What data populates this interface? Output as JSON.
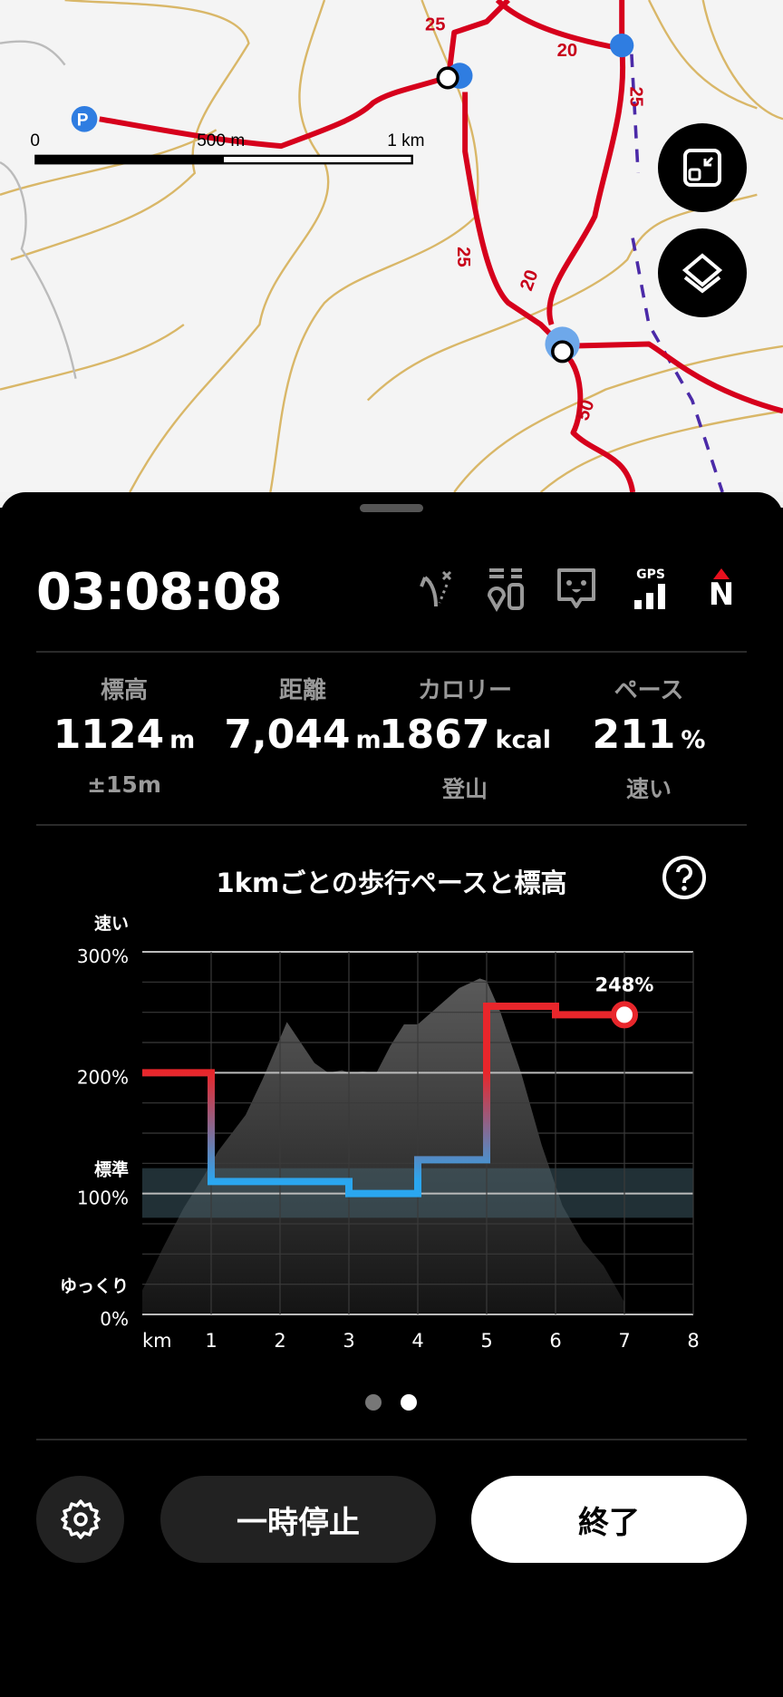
{
  "map": {
    "scale_labels": [
      "0",
      "500 m",
      "1 km"
    ],
    "trail_times": [
      "25",
      "20",
      "25",
      "25",
      "20",
      "50"
    ],
    "buttons": [
      {
        "icon": "fit-route-icon"
      },
      {
        "icon": "layers-icon"
      }
    ],
    "colors": {
      "trail": "#d6001c",
      "contour": "#d9b768",
      "poi": "#2f7de1",
      "boundary": "#4b2aa8"
    }
  },
  "sheet": {
    "timer": "03:08:08",
    "status_icons": [
      "route-off-icon",
      "waypoint-list-icon",
      "face-chat-icon",
      "gps-signal-icon",
      "north-compass-icon"
    ],
    "gps_label": "GPS",
    "north_label": "N",
    "stats": [
      {
        "label": "標高",
        "value": "1124",
        "unit": "m",
        "sub": "±15m"
      },
      {
        "label": "距離",
        "value": "7,044",
        "unit": "m",
        "sub": ""
      },
      {
        "label": "カロリー",
        "value": "1867",
        "unit": "kcal",
        "sub": "登山"
      },
      {
        "label": "ペース",
        "value": "211",
        "unit": "%",
        "sub": "速い"
      }
    ],
    "chart_title": "1kmごとの歩行ペースと標高",
    "pager": {
      "count": 2,
      "active": 2
    },
    "buttons": {
      "pause": "一時停止",
      "end": "終了"
    }
  },
  "chart_data": {
    "type": "line",
    "title": "1kmごとの歩行ペースと標高",
    "xlabel": "km",
    "x_ticks": [
      "1",
      "2",
      "3",
      "4",
      "5",
      "6",
      "7",
      "8"
    ],
    "xlim": [
      0,
      8
    ],
    "ylim": [
      0,
      300
    ],
    "y_ticks": [
      "0%",
      "100%",
      "200%",
      "300%"
    ],
    "y_annotations": {
      "top": "速い",
      "standard": "標準",
      "bottom": "ゆっくり"
    },
    "grid": true,
    "standard_band": [
      80,
      121
    ],
    "pace_series": {
      "segments_km": [
        [
          0,
          1
        ],
        [
          1,
          3
        ],
        [
          3,
          4
        ],
        [
          4,
          5
        ],
        [
          5,
          6
        ],
        [
          6,
          7
        ]
      ],
      "values": [
        200,
        110,
        100,
        128,
        255,
        248
      ],
      "last_label": "248%",
      "colors": {
        "fast": "#e8262b",
        "slow": "#2aa7f0"
      }
    },
    "elevation_profile_relative": {
      "x": [
        0,
        0.3,
        0.6,
        0.9,
        1.1,
        1.5,
        1.75,
        1.9,
        2.1,
        2.3,
        2.5,
        2.7,
        2.9,
        3.0,
        3.2,
        3.4,
        3.6,
        3.8,
        4.0,
        4.3,
        4.6,
        4.9,
        5.0,
        5.2,
        5.5,
        5.8,
        6.1,
        6.4,
        6.7,
        7.0
      ],
      "y": [
        20,
        55,
        88,
        115,
        135,
        165,
        195,
        215,
        242,
        225,
        208,
        200,
        202,
        200,
        201,
        200,
        222,
        240,
        240,
        255,
        270,
        278,
        276,
        250,
        200,
        140,
        90,
        60,
        40,
        10
      ]
    }
  }
}
